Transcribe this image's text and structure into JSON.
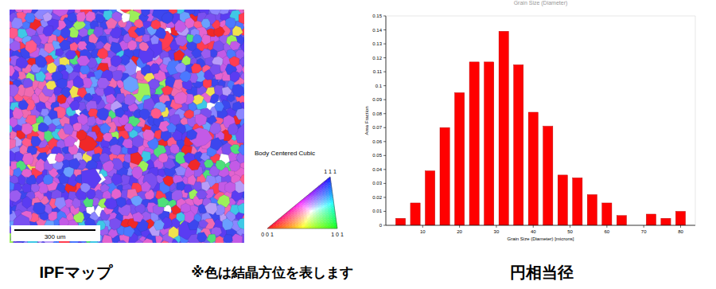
{
  "chart_data": {
    "type": "histogram",
    "title": "Grain Size (Diameter)",
    "x_label": "Grain Size (Diameter) [microns]",
    "y_label": "Area Fraction",
    "bins": [
      2,
      6,
      10,
      14,
      18,
      22,
      26,
      30,
      34,
      38,
      42,
      46,
      50,
      54,
      58,
      62,
      66,
      70,
      74,
      78,
      82
    ],
    "values": [
      0.005,
      0.016,
      0.039,
      0.07,
      0.095,
      0.117,
      0.117,
      0.139,
      0.115,
      0.081,
      0.071,
      0.036,
      0.034,
      0.022,
      0.016,
      0.007,
      0,
      0.008,
      0.005,
      0.01
    ],
    "color": "#ff0000",
    "xlim": [
      0,
      84
    ],
    "xticks": [
      10,
      20,
      30,
      40,
      50,
      60,
      70,
      80
    ],
    "ylim": [
      0,
      0.15
    ],
    "yticks": [
      0,
      0.01,
      0.02,
      0.03,
      0.04,
      0.05,
      0.06,
      0.07,
      0.08,
      0.09,
      0.1,
      0.11,
      0.12,
      0.13,
      0.14,
      0.15
    ],
    "grid": false
  },
  "ipf_map": {
    "label": "IPFマップ",
    "scale_bar": "300 um",
    "note": "※色は結晶方位を表します",
    "legend": {
      "title": "Body Centered Cubic",
      "corner_001": "0 0 1",
      "corner_101": "1 0 1",
      "corner_111": "1 1 1"
    }
  },
  "histogram_caption": "円相当径"
}
